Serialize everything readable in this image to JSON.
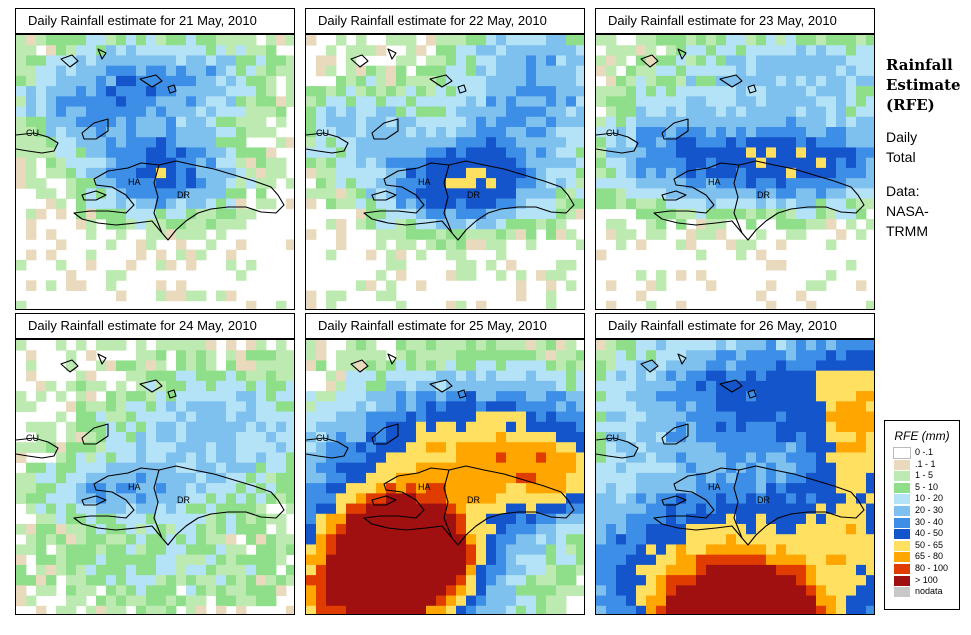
{
  "panels": [
    {
      "title": "Daily Rainfall estimate for  21 May, 2010",
      "scenario": "d21"
    },
    {
      "title": "Daily Rainfall estimate for  22 May, 2010",
      "scenario": "d22"
    },
    {
      "title": "Daily Rainfall estimate for  23 May, 2010",
      "scenario": "d23"
    },
    {
      "title": "Daily Rainfall estimate for  24 May, 2010",
      "scenario": "d24"
    },
    {
      "title": "Daily Rainfall estimate for  25 May, 2010",
      "scenario": "d25"
    },
    {
      "title": "Daily Rainfall estimate for  26 May, 2010",
      "scenario": "d26"
    }
  ],
  "map_labels": {
    "cuba": "CU",
    "haiti": "HA",
    "dominican_republic": "DR"
  },
  "sidebar": {
    "title_line1": "Rainfall",
    "title_line2": "Estimate",
    "title_line3": "(RFE)",
    "sub_line1": "Daily",
    "sub_line2": "Total",
    "data_line1": "Data:",
    "data_line2": "NASA-",
    "data_line3": "TRMM"
  },
  "legend": {
    "title": "RFE (mm)",
    "items": [
      {
        "label": "0 -.1",
        "color": "#ffffff"
      },
      {
        "label": ".1 - 1",
        "color": "#e9d9bd"
      },
      {
        "label": "1 - 5",
        "color": "#bdeab0"
      },
      {
        "label": "5 - 10",
        "color": "#8fdf8a"
      },
      {
        "label": "10 - 20",
        "color": "#b4e2f6"
      },
      {
        "label": "20 - 30",
        "color": "#7ec0ee"
      },
      {
        "label": "30 - 40",
        "color": "#3d8ee6"
      },
      {
        "label": "40 - 50",
        "color": "#1455cc"
      },
      {
        "label": "50 - 65",
        "color": "#ffe060"
      },
      {
        "label": "65 - 80",
        "color": "#ffa600"
      },
      {
        "label": "80 - 100",
        "color": "#e03c00"
      },
      {
        "label": "> 100",
        "color": "#a01010"
      },
      {
        "label": "nodata",
        "color": "#c8c8c8"
      }
    ]
  }
}
